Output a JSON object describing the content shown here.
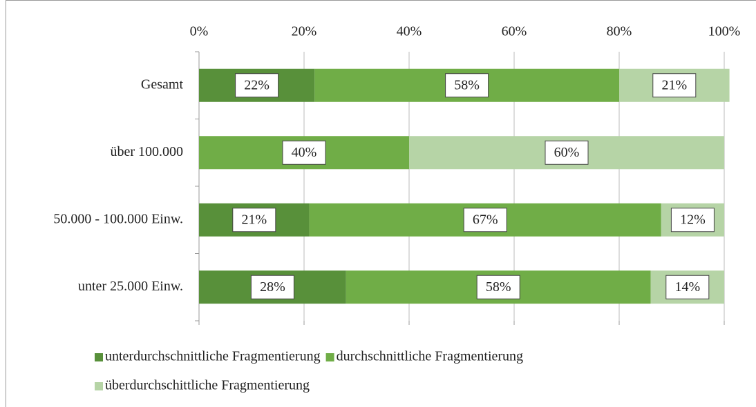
{
  "chart_data": {
    "type": "stacked-bar-horizontal",
    "categories": [
      "Gesamt",
      "über 100.000",
      "50.000 - 100.000 Einw.",
      "unter 25.000 Einw."
    ],
    "series": [
      {
        "name": "unterdurchschnittliche Fragmentierung",
        "color": "#58903a",
        "values": [
          22,
          null,
          21,
          28
        ],
        "value_labels": [
          "22%",
          null,
          "21%",
          "28%"
        ]
      },
      {
        "name": "durchschnittliche Fragmentierung",
        "color": "#70ad47",
        "values": [
          58,
          40,
          67,
          58
        ],
        "value_labels": [
          "58%",
          "40%",
          "67%",
          "58%"
        ]
      },
      {
        "name": "überdurchschittliche Fragmentierung",
        "color": "#b6d4a6",
        "values": [
          21,
          60,
          12,
          14
        ],
        "value_labels": [
          "21%",
          "60%",
          "12%",
          "14%"
        ]
      }
    ],
    "xlim": [
      0,
      100
    ],
    "xticks": [
      {
        "value": 0,
        "label": "0%"
      },
      {
        "value": 20,
        "label": "20%"
      },
      {
        "value": 40,
        "label": "40%"
      },
      {
        "value": 60,
        "label": "60%"
      },
      {
        "value": 80,
        "label": "80%"
      },
      {
        "value": 100,
        "label": "100%"
      }
    ],
    "grid": true,
    "legend": "bottom"
  }
}
